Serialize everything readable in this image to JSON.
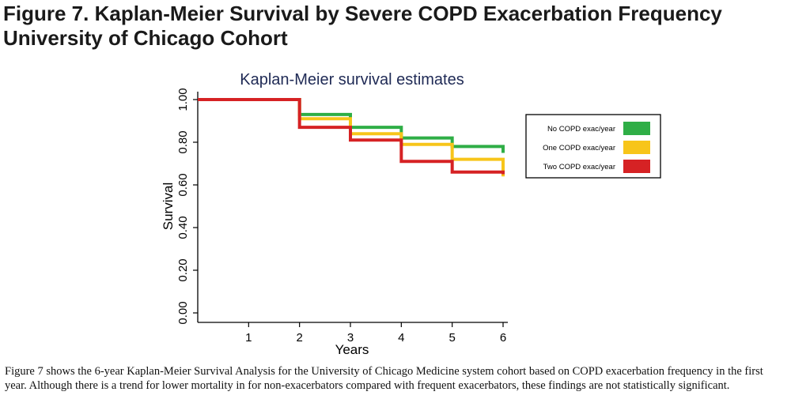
{
  "figure": {
    "title_line1": "Figure 7. Kaplan-Meier Survival by Severe COPD Exacerbation Frequency",
    "title_line2": "University of Chicago Cohort",
    "caption": "Figure 7 shows the 6-year Kaplan-Meier Survival Analysis for the University of Chicago Medicine system cohort based on COPD exacerbation frequency in the first year.  Although there is a trend for lower mortality in for non-exacerbators compared with frequent exacerbators, these findings are not statistically significant."
  },
  "chart_data": {
    "type": "line",
    "step": true,
    "title": "Kaplan-Meier survival estimates",
    "xlabel": "Years",
    "ylabel": "Survival",
    "xlim": [
      0,
      6
    ],
    "ylim": [
      0,
      1
    ],
    "x_ticks": [
      1,
      2,
      3,
      4,
      5,
      6
    ],
    "y_ticks": [
      0,
      0.2,
      0.4,
      0.6,
      0.8,
      1.0
    ],
    "y_tick_labels": [
      "0.00",
      "0.20",
      "0.40",
      "0.60",
      "0.80",
      "1.00"
    ],
    "grid": false,
    "legend_position": "right",
    "series": [
      {
        "name": "No COPD exac/year",
        "color": "#2fae46",
        "x": [
          0,
          2,
          3,
          4,
          5,
          6
        ],
        "values": [
          1.0,
          0.93,
          0.87,
          0.82,
          0.78,
          0.75
        ]
      },
      {
        "name": "One COPD exac/year",
        "color": "#f7c51a",
        "x": [
          0,
          2,
          3,
          4,
          5,
          6
        ],
        "values": [
          1.0,
          0.91,
          0.84,
          0.79,
          0.72,
          0.64
        ]
      },
      {
        "name": "Two COPD exac/year",
        "color": "#d62224",
        "x": [
          0,
          2,
          3,
          4,
          5,
          6
        ],
        "values": [
          1.0,
          0.87,
          0.81,
          0.71,
          0.66,
          0.65
        ]
      }
    ]
  }
}
